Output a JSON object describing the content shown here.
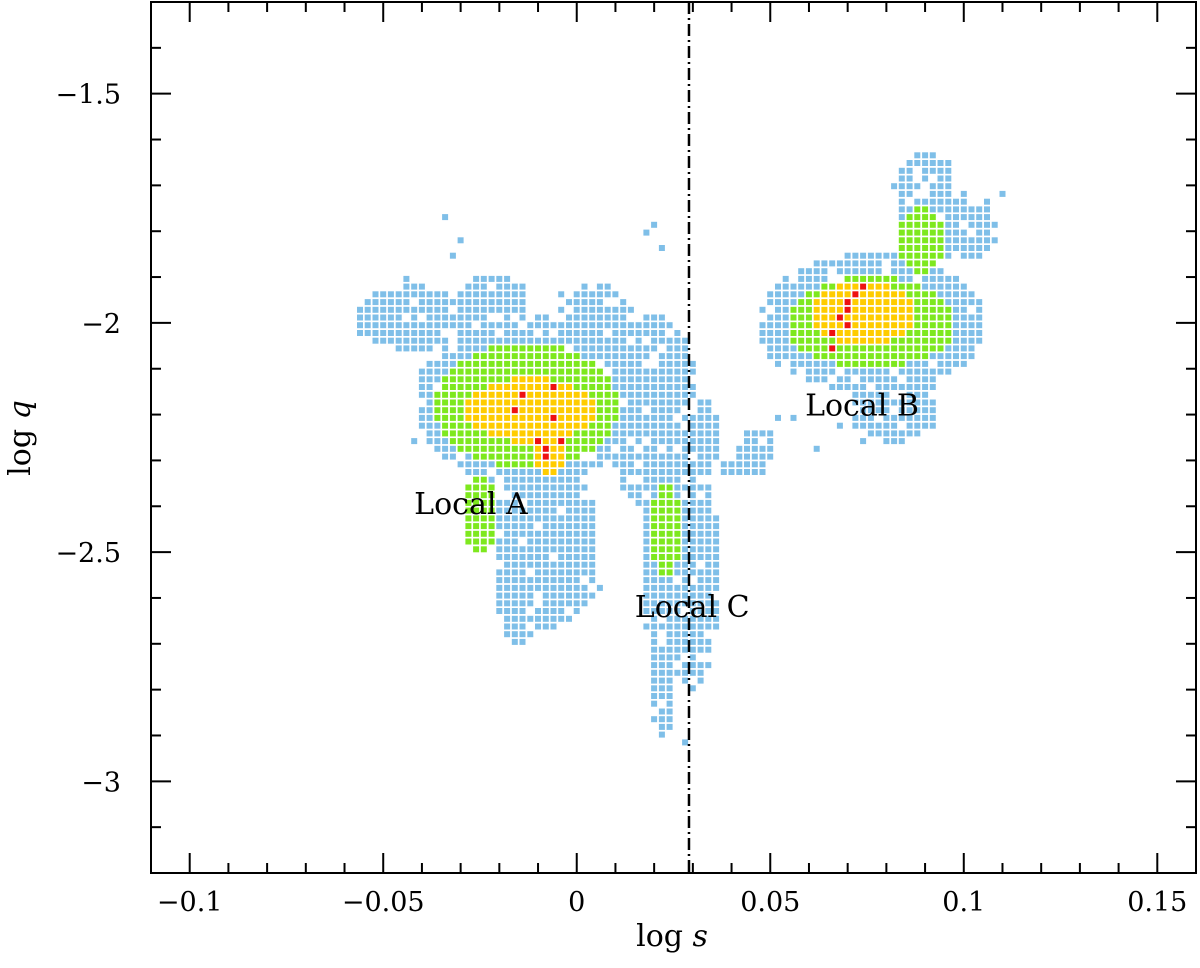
{
  "chart_data": {
    "type": "heatmap",
    "title": "",
    "xlabel": {
      "prefix": "log ",
      "var": "s"
    },
    "ylabel": {
      "prefix": "log ",
      "var": "q"
    },
    "xlim": [
      -0.11,
      0.16
    ],
    "ylim": [
      -3.2,
      -1.3
    ],
    "x_ticks_major": [
      -0.1,
      -0.05,
      0,
      0.05,
      0.1,
      0.15
    ],
    "x_tick_labels": [
      "−0.1",
      "−0.05",
      "0",
      "0.05",
      "0.1",
      "0.15"
    ],
    "x_ticks_minor_step": 0.01,
    "y_ticks_major": [
      -3,
      -2.5,
      -2,
      -1.5
    ],
    "y_tick_labels": [
      "−3",
      "−2.5",
      "−2",
      "−1.5"
    ],
    "y_ticks_minor_step": 0.1,
    "grid": false,
    "vertical_line": {
      "x": 0.029,
      "style": "dash-dot"
    },
    "cell_size": {
      "dx": 0.002,
      "dy": 0.01685
    },
    "level_colors": {
      "1": "#7fbfe8",
      "2": "#7ee81e",
      "3": "#ffcc00",
      "4": "#ee1111"
    },
    "regions": [
      {
        "label": "Local A",
        "label_pos": [
          -0.042,
          -2.395
        ],
        "levels": [
          {
            "level": 1,
            "ellipses": [
              [
                -0.012,
                -2.17,
                0.03,
                0.185,
                -0.5
              ],
              [
                -0.042,
                -1.99,
                0.016,
                0.07,
                0.6
              ],
              [
                -0.008,
                -2.48,
                0.014,
                0.19,
                -0.2
              ],
              [
                0.02,
                -2.2,
                0.012,
                0.22,
                0.1
              ],
              [
                0.005,
                -2.07,
                0.012,
                0.16,
                0.0
              ],
              [
                -0.022,
                -1.99,
                0.01,
                0.1,
                0.0
              ],
              [
                -0.015,
                -2.55,
                0.006,
                0.15,
                0.0
              ],
              [
                -0.005,
                -2.54,
                0.008,
                0.05,
                0.0
              ]
            ]
          },
          {
            "level": 2,
            "ellipses": [
              [
                -0.013,
                -2.18,
                0.024,
                0.135,
                -0.5
              ],
              [
                -0.025,
                -2.42,
                0.005,
                0.08,
                0.0
              ]
            ]
          },
          {
            "level": 3,
            "ellipses": [
              [
                -0.012,
                -2.19,
                0.017,
                0.07,
                -0.4
              ],
              [
                -0.007,
                -2.28,
                0.005,
                0.05,
                0.0
              ]
            ]
          }
        ],
        "peaks": [
          [
            -0.017,
            -2.185
          ],
          [
            -0.015,
            -2.165
          ],
          [
            -0.01,
            -2.265
          ],
          [
            -0.008,
            -2.28
          ],
          [
            -0.007,
            -2.2
          ],
          [
            -0.005,
            -2.26
          ],
          [
            -0.009,
            -2.3
          ],
          [
            -0.007,
            -2.145
          ]
        ]
      },
      {
        "label": "Local B",
        "label_pos": [
          0.059,
          -2.18
        ],
        "levels": [
          {
            "level": 1,
            "ellipses": [
              [
                0.076,
                -2.0,
                0.03,
                0.15,
                0.55
              ],
              [
                0.099,
                -1.8,
                0.01,
                0.07,
                0.2
              ],
              [
                0.09,
                -1.72,
                0.008,
                0.09,
                0.0
              ],
              [
                0.047,
                -2.28,
                0.005,
                0.05,
                0.0
              ],
              [
                0.082,
                -2.18,
                0.012,
                0.08,
                0.0
              ]
            ]
          },
          {
            "level": 2,
            "ellipses": [
              [
                0.076,
                -2.0,
                0.022,
                0.1,
                0.55
              ],
              [
                0.089,
                -1.82,
                0.007,
                0.07,
                0.0
              ]
            ]
          },
          {
            "level": 3,
            "ellipses": [
              [
                0.074,
                -1.98,
                0.013,
                0.07,
                0.55
              ]
            ]
          }
        ],
        "peaks": [
          [
            0.065,
            -2.02
          ],
          [
            0.066,
            -2.05
          ],
          [
            0.067,
            -1.995
          ],
          [
            0.069,
            -1.975
          ],
          [
            0.07,
            -1.955
          ],
          [
            0.072,
            -1.935
          ],
          [
            0.073,
            -1.915
          ],
          [
            0.071,
            -2.0
          ]
        ]
      },
      {
        "label": "Local C",
        "label_pos": [
          0.015,
          -2.62
        ],
        "levels": [
          {
            "level": 1,
            "ellipses": [
              [
                0.024,
                -2.45,
                0.008,
                0.33,
                0.0
              ],
              [
                0.03,
                -2.55,
                0.007,
                0.25,
                0.0
              ],
              [
                0.022,
                -2.82,
                0.004,
                0.09,
                0.0
              ],
              [
                0.033,
                -2.25,
                0.004,
                0.08,
                0.0
              ],
              [
                0.04,
                -2.32,
                0.003,
                0.02,
                0.0
              ],
              [
                0.044,
                -2.3,
                0.004,
                0.03,
                0.3
              ]
            ]
          },
          {
            "level": 2,
            "ellipses": [
              [
                0.023,
                -2.45,
                0.004,
                0.11,
                0.0
              ]
            ]
          }
        ],
        "peaks": []
      }
    ],
    "sparse_points": [
      [
        -0.05,
        -1.96
      ],
      [
        -0.055,
        -1.95
      ],
      [
        -0.045,
        -1.9
      ],
      [
        -0.04,
        -1.92
      ],
      [
        -0.042,
        -2.25
      ],
      [
        -0.033,
        -1.85
      ],
      [
        -0.035,
        -1.77
      ],
      [
        -0.03,
        -1.82
      ],
      [
        -0.025,
        -1.9
      ],
      [
        -0.015,
        -1.92
      ],
      [
        -0.005,
        -1.94
      ],
      [
        0.004,
        -1.95
      ],
      [
        0.01,
        -1.98
      ],
      [
        0.015,
        -2.0
      ],
      [
        0.018,
        -1.8
      ],
      [
        0.02,
        -1.78
      ],
      [
        0.021,
        -1.83
      ],
      [
        0.01,
        -2.2
      ],
      [
        0.013,
        -2.28
      ],
      [
        -0.01,
        -2.58
      ],
      [
        -0.015,
        -2.6
      ],
      [
        -0.018,
        -2.68
      ],
      [
        -0.008,
        -2.6
      ],
      [
        0.005,
        -2.58
      ],
      [
        -0.003,
        -2.58
      ],
      [
        -0.002,
        -2.6
      ],
      [
        0.003,
        -2.6
      ],
      [
        0.022,
        -2.87
      ],
      [
        0.027,
        -2.92
      ],
      [
        0.029,
        -2.8
      ],
      [
        0.052,
        -2.2
      ],
      [
        0.056,
        -2.2
      ],
      [
        0.062,
        -2.28
      ],
      [
        0.068,
        -2.22
      ],
      [
        0.074,
        -2.25
      ],
      [
        0.082,
        -1.71
      ],
      [
        0.086,
        -1.67
      ],
      [
        0.092,
        -1.63
      ],
      [
        0.096,
        -1.65
      ],
      [
        0.106,
        -1.74
      ],
      [
        0.11,
        -1.72
      ],
      [
        0.1,
        -1.72
      ],
      [
        0.09,
        -2.04
      ],
      [
        0.095,
        -2.05
      ],
      [
        0.085,
        -2.1
      ],
      [
        0.082,
        -2.12
      ],
      [
        0.08,
        -2.15
      ],
      [
        0.088,
        -1.64
      ]
    ]
  }
}
